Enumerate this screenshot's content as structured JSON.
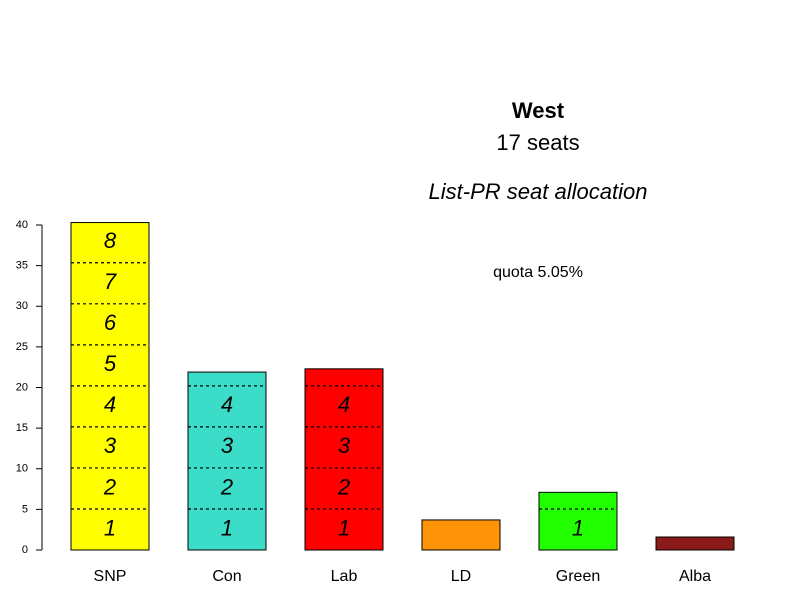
{
  "chart_data": {
    "type": "bar",
    "title": "West",
    "subtitle": "17 seats",
    "method": "List-PR seat allocation",
    "quota": {
      "value": 5.05,
      "label": "quota 5.05%"
    },
    "categories": [
      "SNP",
      "Con",
      "Lab",
      "LD",
      "Green",
      "Alba"
    ],
    "values": [
      40.3,
      21.9,
      22.3,
      3.7,
      7.1,
      1.6
    ],
    "colors": [
      "#ffff00",
      "#3bdcc8",
      "#ff0000",
      "#ff9408",
      "#22ff00",
      "#8b1a1a"
    ],
    "seat_labels": [
      [
        1,
        2,
        3,
        4,
        5,
        6,
        7,
        8
      ],
      [
        1,
        2,
        3,
        4
      ],
      [
        1,
        2,
        3,
        4
      ],
      [],
      [
        1
      ],
      []
    ],
    "ylim": [
      0,
      40
    ],
    "yticks": [
      0,
      5,
      10,
      15,
      20,
      25,
      30,
      35,
      40
    ]
  }
}
